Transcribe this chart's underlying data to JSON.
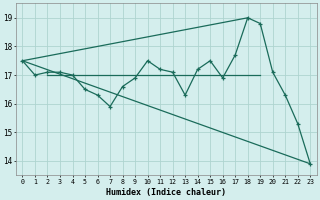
{
  "xlabel": "Humidex (Indice chaleur)",
  "xlim": [
    -0.5,
    23.5
  ],
  "ylim": [
    13.5,
    19.5
  ],
  "xticks": [
    0,
    1,
    2,
    3,
    4,
    5,
    6,
    7,
    8,
    9,
    10,
    11,
    12,
    13,
    14,
    15,
    16,
    17,
    18,
    19,
    20,
    21,
    22,
    23
  ],
  "yticks": [
    14,
    15,
    16,
    17,
    18,
    19
  ],
  "background_color": "#d4eeed",
  "grid_color": "#aed4d0",
  "line_color": "#1a6b5a",
  "main_line": {
    "x": [
      0,
      1,
      2,
      3,
      4,
      5,
      6,
      7,
      8,
      9,
      10,
      11,
      12,
      13,
      14,
      15,
      16,
      17,
      18,
      19,
      20,
      21,
      22,
      23
    ],
    "y": [
      17.5,
      17.0,
      17.1,
      17.1,
      17.0,
      16.5,
      16.3,
      15.9,
      16.6,
      16.9,
      17.5,
      17.2,
      17.1,
      16.3,
      17.2,
      17.5,
      16.9,
      17.7,
      19.0,
      18.8,
      17.1,
      16.3,
      15.3,
      13.9
    ]
  },
  "diag_line_bottom": {
    "x": [
      0,
      23
    ],
    "y": [
      17.5,
      13.9
    ]
  },
  "diag_line_top": {
    "x": [
      0,
      18
    ],
    "y": [
      17.5,
      19.0
    ]
  },
  "horiz_line": {
    "x": [
      2,
      19
    ],
    "y": [
      17.0,
      17.0
    ]
  }
}
